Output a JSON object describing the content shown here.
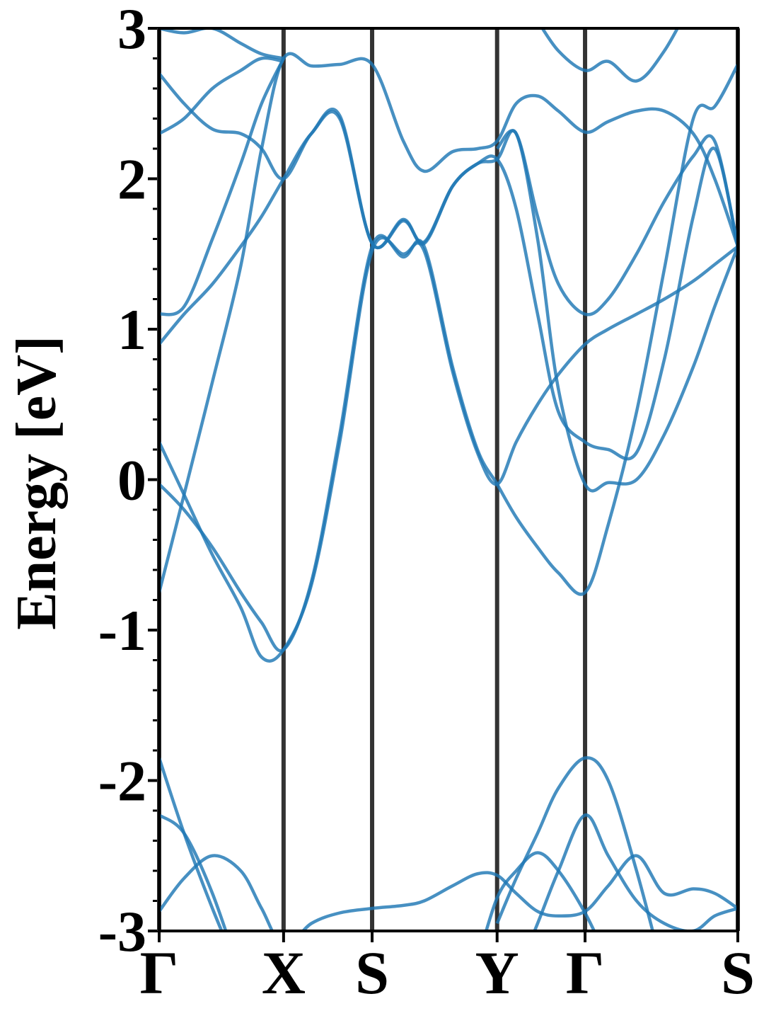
{
  "chart_data": {
    "type": "line",
    "y_label": "Energy [eV]",
    "x": [
      0,
      0.043,
      0.092,
      0.141,
      0.177,
      0.215,
      0.263,
      0.312,
      0.368,
      0.422,
      0.458,
      0.507,
      0.55,
      0.584,
      0.617,
      0.654,
      0.69,
      0.736,
      0.776,
      0.825,
      0.873,
      0.923,
      0.96,
      1.0
    ],
    "xlim": [
      0,
      1.0
    ],
    "xticks": [
      {
        "value": 0,
        "label": "Γ"
      },
      {
        "value": 0.215,
        "label": "X"
      },
      {
        "value": 0.368,
        "label": "S"
      },
      {
        "value": 0.584,
        "label": "Y"
      },
      {
        "value": 0.736,
        "label": "Γ"
      },
      {
        "value": 1.0,
        "label": "S"
      }
    ],
    "ylim": [
      -3,
      3
    ],
    "yticks": [
      -3,
      -2,
      -1,
      0,
      1,
      2,
      3
    ],
    "yminorticks": [
      -2.8,
      -2.6,
      -2.4,
      -2.2,
      -1.8,
      -1.6,
      -1.4,
      -1.2,
      -0.8,
      -0.6,
      -0.4,
      -0.2,
      0.2,
      0.4,
      0.6,
      0.8,
      1.2,
      1.4,
      1.6,
      1.8,
      2.2,
      2.4,
      2.6,
      2.8
    ],
    "series": [
      {
        "color": "#1f77b4",
        "values": [
          -0.75,
          -0.1,
          0.65,
          1.42,
          2.2,
          2.8,
          2.75,
          2.76,
          2.76,
          2.25,
          2.05,
          2.18,
          2.2,
          2.25,
          2.5,
          2.55,
          2.45,
          2.31,
          2.38,
          2.45,
          2.45,
          2.3,
          2.0,
          1.55
        ]
      },
      {
        "color": "#1f77b4",
        "values": [
          -0.03,
          -0.2,
          -0.45,
          -0.75,
          -0.95,
          -1.13,
          -0.68,
          0.3,
          1.55,
          1.48,
          1.55,
          0.75,
          0.2,
          -0.03,
          -0.25,
          -0.45,
          -0.62,
          -0.75,
          -0.3,
          0.45,
          1.4,
          2.4,
          2.48,
          2.76
        ]
      },
      {
        "color": "#1f77b4",
        "values": [
          0.25,
          -0.1,
          -0.5,
          -0.85,
          -1.18,
          -1.13,
          -0.7,
          0.25,
          1.52,
          1.5,
          1.52,
          0.72,
          0.18,
          -0.03,
          0.25,
          0.5,
          0.7,
          0.9,
          1.0,
          1.1,
          1.2,
          1.32,
          1.43,
          1.55
        ]
      },
      {
        "color": "#1f77b4",
        "values": [
          0.9,
          1.1,
          1.3,
          1.55,
          1.75,
          2.0,
          2.3,
          2.4,
          1.57,
          1.72,
          1.58,
          1.95,
          2.1,
          2.13,
          1.8,
          1.1,
          0.45,
          0.25,
          0.2,
          0.18,
          0.8,
          1.75,
          2.2,
          1.55
        ]
      },
      {
        "color": "#1f77b4",
        "values": [
          1.1,
          1.15,
          1.6,
          2.1,
          2.5,
          2.8,
          null,
          null,
          null,
          null,
          null,
          null,
          null,
          2.2,
          2.3,
          1.75,
          1.3,
          1.1,
          1.2,
          1.5,
          1.85,
          2.15,
          2.25,
          1.55
        ]
      },
      {
        "color": "#1f77b4",
        "values": [
          2.3,
          2.4,
          2.6,
          2.72,
          2.8,
          2.78,
          null,
          null,
          null,
          null,
          null,
          null,
          null,
          null,
          null,
          3.05,
          2.85,
          2.72,
          2.78,
          2.65,
          2.85,
          3.2,
          null,
          null
        ]
      },
      {
        "color": "#1f77b4",
        "values": [
          2.7,
          2.5,
          2.33,
          2.3,
          2.2,
          2.0,
          2.3,
          2.42,
          1.57,
          1.73,
          1.57,
          1.95,
          2.1,
          2.13,
          2.3,
          1.6,
          0.6,
          -0.03,
          -0.02,
          0.0,
          0.3,
          0.75,
          1.15,
          1.55
        ]
      },
      {
        "color": "#1f77b4",
        "values": [
          3.0,
          2.97,
          3.0,
          2.9,
          2.83,
          2.8,
          null,
          null,
          null,
          null,
          null,
          null,
          null,
          null,
          null,
          null,
          null,
          null,
          null,
          null,
          null,
          null,
          null,
          null
        ]
      },
      {
        "color": "#1f77b4",
        "values": [
          -1.85,
          -2.35,
          -2.85,
          -3.3,
          null,
          null,
          null,
          null,
          null,
          null,
          null,
          null,
          null,
          -2.95,
          -2.65,
          -2.35,
          -2.05,
          -1.85,
          -2.0,
          -2.6,
          -3.3,
          null,
          null,
          null
        ]
      },
      {
        "color": "#1f77b4",
        "values": [
          -2.23,
          -2.35,
          -2.75,
          -3.3,
          null,
          null,
          null,
          null,
          null,
          null,
          null,
          null,
          null,
          null,
          -3.3,
          -2.95,
          -2.6,
          -2.23,
          -2.5,
          -2.8,
          -2.95,
          -3.0,
          -2.9,
          -2.85
        ]
      },
      {
        "color": "#1f77b4",
        "values": [
          -2.87,
          -2.65,
          -2.5,
          -2.6,
          -2.85,
          -3.1,
          -2.95,
          -2.88,
          -2.85,
          -2.83,
          -2.8,
          -2.7,
          -2.62,
          -2.63,
          -2.75,
          -2.87,
          -2.9,
          -2.87,
          -2.7,
          -2.5,
          -2.75,
          -2.72,
          -2.75,
          -2.85
        ]
      },
      {
        "color": "#1f77b4",
        "values": [
          null,
          null,
          null,
          null,
          null,
          null,
          null,
          null,
          null,
          null,
          null,
          null,
          -3.2,
          -2.78,
          -2.6,
          -2.48,
          -2.6,
          -2.88,
          -3.2,
          null,
          null,
          null,
          null,
          null
        ]
      }
    ]
  }
}
